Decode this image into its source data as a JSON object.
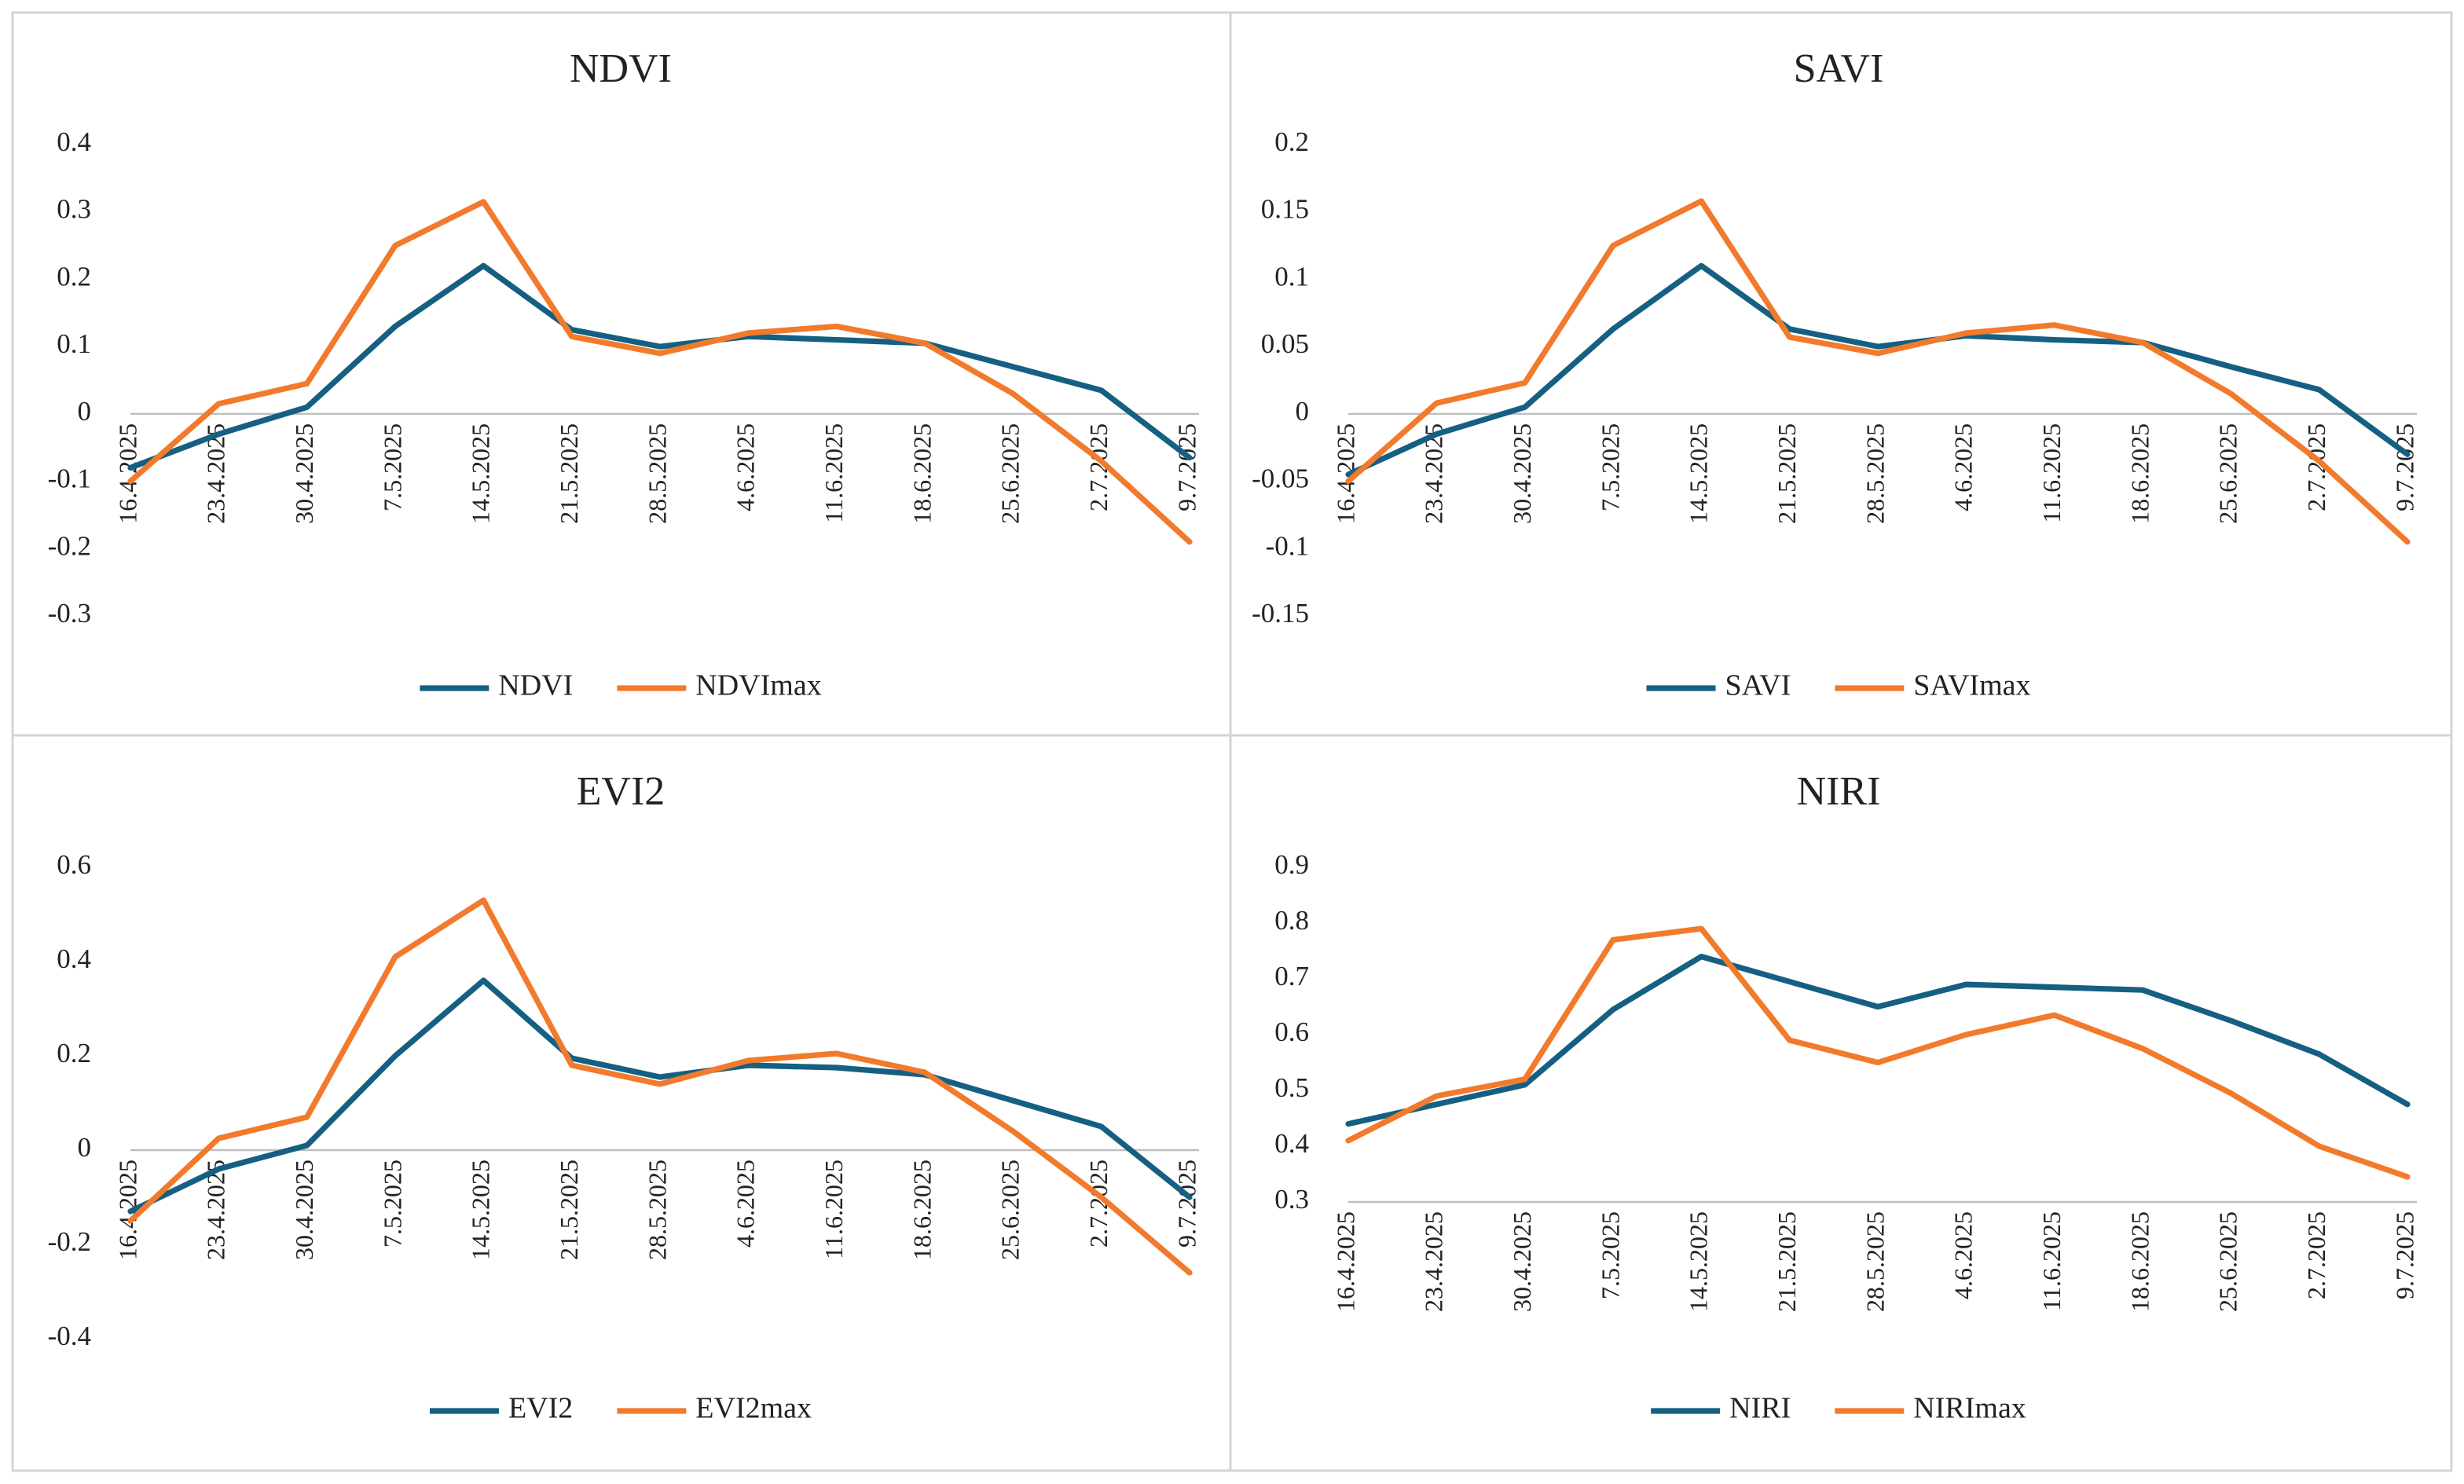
{
  "chart_data": [
    {
      "type": "line",
      "title": "NDVI",
      "categories": [
        "16.4.2025",
        "23.4.2025",
        "30.4.2025",
        "7.5.2025",
        "14.5.2025",
        "21.5.2025",
        "28.5.2025",
        "4.6.2025",
        "11.6.2025",
        "18.6.2025",
        "25.6.2025",
        "2.7.2025",
        "9.7.2025"
      ],
      "series": [
        {
          "name": "NDVI",
          "color": "#156082",
          "values": [
            -0.08,
            -0.03,
            0.01,
            0.13,
            0.22,
            0.125,
            0.1,
            0.115,
            0.11,
            0.105,
            0.07,
            0.035,
            -0.065
          ]
        },
        {
          "name": "NDVImax",
          "color": "#f27a2c",
          "values": [
            -0.1,
            0.015,
            0.045,
            0.25,
            0.315,
            0.115,
            0.09,
            0.12,
            0.13,
            0.105,
            0.03,
            -0.07,
            -0.19
          ]
        }
      ],
      "ylim": [
        -0.3,
        0.4
      ],
      "yticks": [
        -0.3,
        -0.2,
        -0.1,
        0,
        0.1,
        0.2,
        0.3,
        0.4
      ],
      "legend": "bottom",
      "grid": false
    },
    {
      "type": "line",
      "title": "SAVI",
      "categories": [
        "16.4.2025",
        "23.4.2025",
        "30.4.2025",
        "7.5.2025",
        "14.5.2025",
        "21.5.2025",
        "28.5.2025",
        "4.6.2025",
        "11.6.2025",
        "18.6.2025",
        "25.6.2025",
        "2.7.2025",
        "9.7.2025"
      ],
      "series": [
        {
          "name": "SAVI",
          "color": "#156082",
          "values": [
            -0.045,
            -0.015,
            0.005,
            0.063,
            0.11,
            0.063,
            0.05,
            0.058,
            0.055,
            0.053,
            0.035,
            0.018,
            -0.03
          ]
        },
        {
          "name": "SAVImax",
          "color": "#f27a2c",
          "values": [
            -0.05,
            0.008,
            0.023,
            0.125,
            0.158,
            0.057,
            0.045,
            0.06,
            0.066,
            0.053,
            0.015,
            -0.035,
            -0.095
          ]
        }
      ],
      "ylim": [
        -0.15,
        0.2
      ],
      "yticks": [
        -0.15,
        -0.1,
        -0.05,
        0,
        0.05,
        0.1,
        0.15,
        0.2
      ],
      "legend": "bottom",
      "grid": false
    },
    {
      "type": "line",
      "title": "EVI2",
      "categories": [
        "16.4.2025",
        "23.4.2025",
        "30.4.2025",
        "7.5.2025",
        "14.5.2025",
        "21.5.2025",
        "28.5.2025",
        "4.6.2025",
        "11.6.2025",
        "18.6.2025",
        "25.6.2025",
        "2.7.2025",
        "9.7.2025"
      ],
      "series": [
        {
          "name": "EVI2",
          "color": "#156082",
          "values": [
            -0.13,
            -0.04,
            0.01,
            0.2,
            0.36,
            0.195,
            0.155,
            0.18,
            0.175,
            0.16,
            0.105,
            0.05,
            -0.1
          ]
        },
        {
          "name": "EVI2max",
          "color": "#f27a2c",
          "values": [
            -0.15,
            0.025,
            0.07,
            0.41,
            0.53,
            0.18,
            0.14,
            0.19,
            0.205,
            0.165,
            0.04,
            -0.1,
            -0.26
          ]
        }
      ],
      "ylim": [
        -0.4,
        0.6
      ],
      "yticks": [
        -0.4,
        -0.2,
        0,
        0.2,
        0.4,
        0.6
      ],
      "legend": "bottom",
      "grid": false
    },
    {
      "type": "line",
      "title": "NIRI",
      "categories": [
        "16.4.2025",
        "23.4.2025",
        "30.4.2025",
        "7.5.2025",
        "14.5.2025",
        "21.5.2025",
        "28.5.2025",
        "4.6.2025",
        "11.6.2025",
        "18.6.2025",
        "25.6.2025",
        "2.7.2025",
        "9.7.2025"
      ],
      "series": [
        {
          "name": "NIRI",
          "color": "#156082",
          "values": [
            0.44,
            0.475,
            0.51,
            0.645,
            0.74,
            0.695,
            0.65,
            0.69,
            0.685,
            0.68,
            0.625,
            0.565,
            0.475
          ]
        },
        {
          "name": "NIRImax",
          "color": "#f27a2c",
          "values": [
            0.41,
            0.49,
            0.52,
            0.77,
            0.79,
            0.59,
            0.55,
            0.6,
            0.635,
            0.575,
            0.495,
            0.4,
            0.345
          ]
        }
      ],
      "ylim": [
        0.3,
        0.9
      ],
      "yticks": [
        0.3,
        0.4,
        0.5,
        0.6,
        0.7,
        0.8,
        0.9
      ],
      "legend": "bottom",
      "grid": false
    }
  ]
}
